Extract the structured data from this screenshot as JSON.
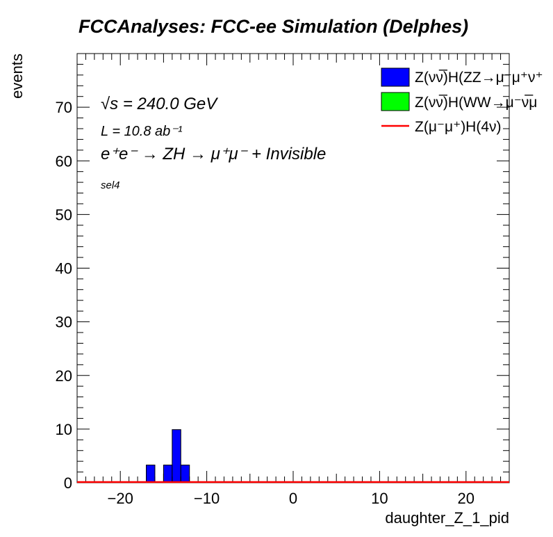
{
  "chart_data": {
    "type": "bar",
    "title": "FCCAnalyses: FCC-ee Simulation (Delphes)",
    "xlabel": "daughter_Z_1_pid",
    "ylabel": "events",
    "xlim": [
      -25,
      25
    ],
    "ylim": [
      0,
      80
    ],
    "xticks": [
      -20,
      -10,
      0,
      10,
      20
    ],
    "yticks": [
      0,
      10,
      20,
      30,
      40,
      50,
      60,
      70
    ],
    "xtick_labels": [
      "−20",
      "−10",
      "0",
      "10",
      "20"
    ],
    "ytick_labels": [
      "0",
      "10",
      "20",
      "30",
      "40",
      "50",
      "60",
      "70"
    ],
    "bin_width": 1,
    "series": [
      {
        "name": "Z(νν̅)H(ZZ→μ⁻μ⁺ν⁺",
        "style": "filled",
        "color": "#0000ff",
        "bins": [
          {
            "x0": -17,
            "x1": -16,
            "y": 3.3
          },
          {
            "x0": -15,
            "x1": -14,
            "y": 3.3
          },
          {
            "x0": -14,
            "x1": -13,
            "y": 9.9
          },
          {
            "x0": -13,
            "x1": -12,
            "y": 3.3
          }
        ]
      },
      {
        "name": "Z(νν̅)H(WW→μ⁻ν̅μ",
        "style": "filled",
        "color": "#00ff00",
        "bins": []
      },
      {
        "name": "Z(μ⁻μ⁺)H(4ν)",
        "style": "line",
        "color": "#ff0000",
        "bins": []
      }
    ],
    "annotations": {
      "sqrt_s": "√s = 240.0 GeV",
      "lumi": "L = 10.8 ab⁻¹",
      "process": "e⁺e⁻ → ZH → μ⁺μ⁻ + Invisible",
      "selection": "sel4"
    },
    "legend_placement": "top-right",
    "grid": false
  }
}
